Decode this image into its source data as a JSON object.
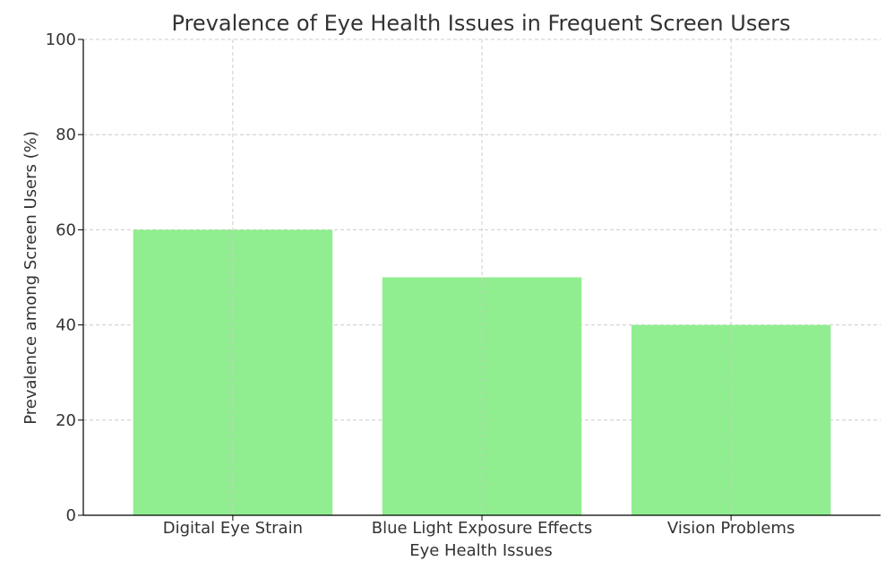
{
  "chart_data": {
    "type": "bar",
    "title": "Prevalence of Eye Health Issues in Frequent Screen Users",
    "xlabel": "Eye Health Issues",
    "ylabel": "Prevalence among Screen Users (%)",
    "categories": [
      "Digital Eye Strain",
      "Blue Light Exposure Effects",
      "Vision Problems"
    ],
    "values": [
      60,
      50,
      40
    ],
    "ylim": [
      0,
      100
    ],
    "yticks": [
      0,
      20,
      40,
      60,
      80,
      100
    ],
    "grid": true,
    "bar_color": "#90ee90",
    "grid_color": "#cccccc",
    "axis_color": "#000000",
    "text_color": "#333333"
  }
}
